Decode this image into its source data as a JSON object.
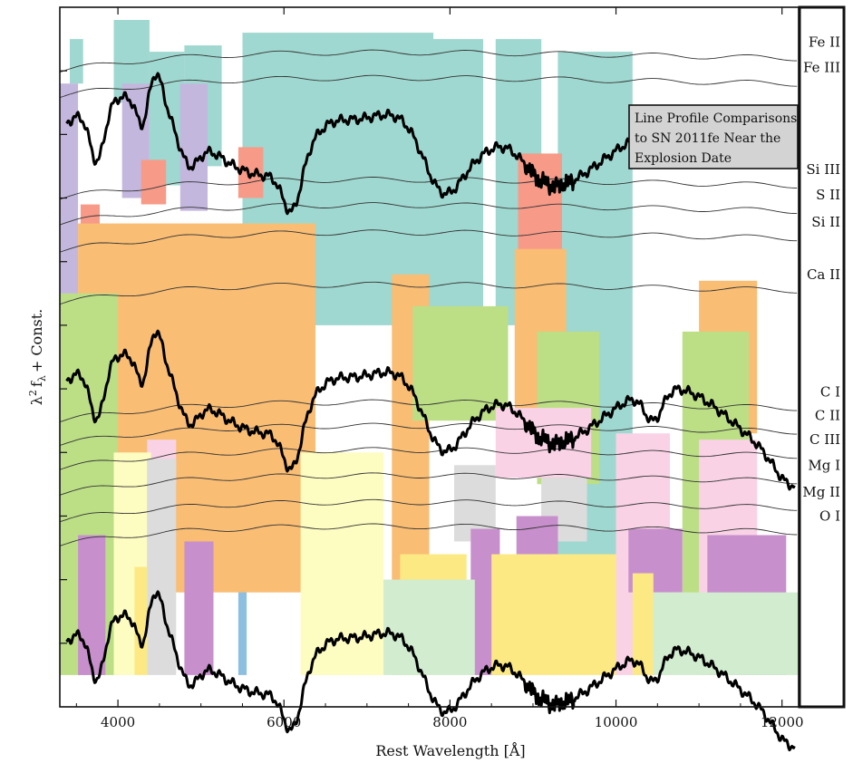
{
  "chart_data": {
    "type": "line",
    "title": "",
    "annotation": [
      "Line Profile Comparisons",
      "to SN 2011fe Near the",
      "Explosion Date"
    ],
    "xlabel": "Rest Wavelength [Å]",
    "ylabel": "λ² f_λ + Const.",
    "ylabel_parts": {
      "lambda": "λ",
      "exp": "2",
      "f": "f",
      "sub": "λ",
      "rest": "+ Const."
    },
    "xlim": [
      3300,
      12200
    ],
    "ylim": [
      0,
      11
    ],
    "x_ticks": [
      4000,
      6000,
      8000,
      10000,
      12000
    ],
    "x_tick_labels": [
      "4000",
      "6000",
      "8000",
      "10000",
      "12000"
    ],
    "y_ticklabels_shown": false,
    "grid": false,
    "ion_labels": [
      "Fe II",
      "Fe III",
      "Si III",
      "S II",
      "Si II",
      "Ca II",
      "C I",
      "C II",
      "C III",
      "Mg I",
      "Mg II",
      "O I"
    ],
    "ion_offsets": [
      10.45,
      10.05,
      8.45,
      8.05,
      7.62,
      6.8,
      4.95,
      4.58,
      4.2,
      3.8,
      3.38,
      3.0
    ],
    "ion_colors": {
      "Fe II": "#9fd8d0",
      "Fe III": "#c4b7de",
      "Si III": "#f79a88",
      "S II": "#8dbfe0",
      "Si II": "#f9bd74",
      "Ca II": "#bcdf86",
      "C I": "#f9d2e6",
      "C II": "#fdfcc1",
      "C III": "#dcdcdc",
      "Mg I": "#c790cc",
      "Mg II": "#fce983",
      "O I": "#d2ecd0"
    },
    "bands": [
      {
        "ion": "Fe II",
        "x": [
          3420,
          3580
        ],
        "y": [
          9.8,
          10.5
        ]
      },
      {
        "ion": "Fe II",
        "x": [
          3950,
          4380
        ],
        "y": [
          9.5,
          10.8
        ]
      },
      {
        "ion": "Fe II",
        "x": [
          4380,
          4800
        ],
        "y": [
          8.2,
          10.3
        ]
      },
      {
        "ion": "Fe II",
        "x": [
          4800,
          5250
        ],
        "y": [
          8.5,
          10.4
        ]
      },
      {
        "ion": "Fe II",
        "x": [
          5500,
          7800
        ],
        "y": [
          6.0,
          10.6
        ]
      },
      {
        "ion": "Fe II",
        "x": [
          7750,
          8400
        ],
        "y": [
          6.2,
          10.5
        ]
      },
      {
        "ion": "Fe II",
        "x": [
          8550,
          9100
        ],
        "y": [
          6.0,
          10.5
        ]
      },
      {
        "ion": "Fe II",
        "x": [
          9300,
          10200
        ],
        "y": [
          1.8,
          10.3
        ]
      },
      {
        "ion": "Fe III",
        "x": [
          3300,
          3520
        ],
        "y": [
          5.0,
          9.8
        ]
      },
      {
        "ion": "Fe III",
        "x": [
          4050,
          4380
        ],
        "y": [
          8.0,
          9.8
        ]
      },
      {
        "ion": "Fe III",
        "x": [
          4750,
          5080
        ],
        "y": [
          7.8,
          9.8
        ]
      },
      {
        "ion": "Si III",
        "x": [
          3550,
          3780
        ],
        "y": [
          6.8,
          7.9
        ]
      },
      {
        "ion": "Si III",
        "x": [
          4280,
          4580
        ],
        "y": [
          7.9,
          8.6
        ]
      },
      {
        "ion": "Si III",
        "x": [
          5450,
          5750
        ],
        "y": [
          8.0,
          8.8
        ]
      },
      {
        "ion": "Si III",
        "x": [
          8820,
          9350
        ],
        "y": [
          7.0,
          8.7
        ]
      },
      {
        "ion": "S II",
        "x": [
          3900,
          6200
        ],
        "y": [
          6.5,
          7.5
        ]
      },
      {
        "ion": "S II",
        "x": [
          4380,
          4680
        ],
        "y": [
          4.3,
          6.5
        ]
      },
      {
        "ion": "S II",
        "x": [
          5450,
          5550
        ],
        "y": [
          0.5,
          6.5
        ]
      },
      {
        "ion": "Si II",
        "x": [
          3520,
          6380
        ],
        "y": [
          1.8,
          7.6
        ]
      },
      {
        "ion": "Si II",
        "x": [
          7300,
          7750
        ],
        "y": [
          0.5,
          6.8
        ]
      },
      {
        "ion": "Si II",
        "x": [
          8780,
          9400
        ],
        "y": [
          4.5,
          7.2
        ]
      },
      {
        "ion": "Si II",
        "x": [
          11000,
          11700
        ],
        "y": [
          4.3,
          6.7
        ]
      },
      {
        "ion": "Ca II",
        "x": [
          3300,
          4000
        ],
        "y": [
          0.5,
          6.5
        ]
      },
      {
        "ion": "Ca II",
        "x": [
          7550,
          8700
        ],
        "y": [
          4.5,
          6.3
        ]
      },
      {
        "ion": "Ca II",
        "x": [
          9050,
          9800
        ],
        "y": [
          3.5,
          5.9
        ]
      },
      {
        "ion": "Ca II",
        "x": [
          10800,
          11600
        ],
        "y": [
          1.7,
          5.9
        ]
      },
      {
        "ion": "C I",
        "x": [
          4350,
          4700
        ],
        "y": [
          3.5,
          4.2
        ]
      },
      {
        "ion": "C I",
        "x": [
          8550,
          9700
        ],
        "y": [
          3.6,
          4.7
        ]
      },
      {
        "ion": "C I",
        "x": [
          10000,
          10650
        ],
        "y": [
          0.5,
          4.3
        ]
      },
      {
        "ion": "C I",
        "x": [
          11000,
          11700
        ],
        "y": [
          0.5,
          4.2
        ]
      },
      {
        "ion": "C II",
        "x": [
          3950,
          4400
        ],
        "y": [
          0.5,
          4.0
        ]
      },
      {
        "ion": "C II",
        "x": [
          6200,
          7200
        ],
        "y": [
          0.5,
          4.0
        ]
      },
      {
        "ion": "C III",
        "x": [
          4350,
          4700
        ],
        "y": [
          0.5,
          3.9
        ]
      },
      {
        "ion": "C III",
        "x": [
          8050,
          8550
        ],
        "y": [
          2.6,
          3.8
        ]
      },
      {
        "ion": "C III",
        "x": [
          9100,
          9650
        ],
        "y": [
          2.6,
          3.6
        ]
      },
      {
        "ion": "Mg I",
        "x": [
          3520,
          3850
        ],
        "y": [
          0.5,
          2.7
        ]
      },
      {
        "ion": "Mg I",
        "x": [
          4800,
          5150
        ],
        "y": [
          0.5,
          2.6
        ]
      },
      {
        "ion": "Mg I",
        "x": [
          8250,
          8600
        ],
        "y": [
          0.5,
          2.8
        ]
      },
      {
        "ion": "Mg I",
        "x": [
          8800,
          9300
        ],
        "y": [
          2.4,
          3.0
        ]
      },
      {
        "ion": "Mg I",
        "x": [
          10150,
          10800
        ],
        "y": [
          1.8,
          2.8
        ]
      },
      {
        "ion": "Mg I",
        "x": [
          11100,
          12050
        ],
        "y": [
          0.5,
          2.7
        ]
      },
      {
        "ion": "Mg II",
        "x": [
          4200,
          4350
        ],
        "y": [
          0.5,
          2.2
        ]
      },
      {
        "ion": "Mg II",
        "x": [
          7400,
          8200
        ],
        "y": [
          1.6,
          2.4
        ]
      },
      {
        "ion": "Mg II",
        "x": [
          8500,
          10000
        ],
        "y": [
          0.5,
          2.4
        ]
      },
      {
        "ion": "Mg II",
        "x": [
          10200,
          10450
        ],
        "y": [
          0.5,
          2.1
        ]
      },
      {
        "ion": "O I",
        "x": [
          7200,
          8300
        ],
        "y": [
          0.5,
          2.0
        ]
      },
      {
        "ion": "O I",
        "x": [
          10450,
          12200
        ],
        "y": [
          0.5,
          1.8
        ]
      }
    ],
    "spectra": [
      {
        "name": "",
        "offset": 0.95
      },
      {
        "name": "",
        "offset": 5.05
      },
      {
        "name": "",
        "offset": 9.1
      }
    ]
  }
}
